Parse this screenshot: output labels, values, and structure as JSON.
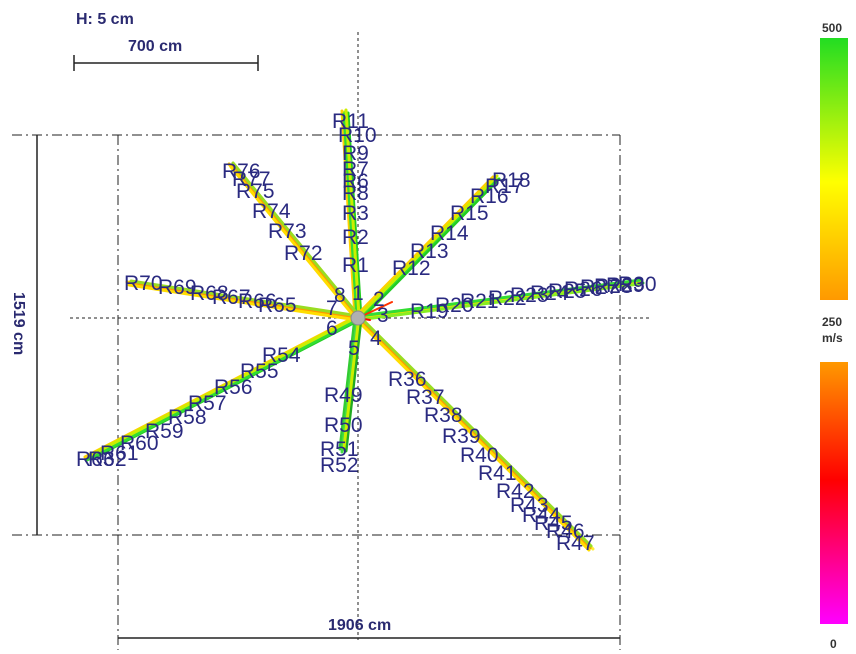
{
  "diagram": {
    "height_label": "H: 5 cm",
    "scale_label": "700 cm",
    "width_label": "1906 cm",
    "depth_label": "1519 cm"
  },
  "legend": {
    "max_label": "500",
    "mid_label": "250",
    "unit_label": "m/s",
    "min_label": "0",
    "colors": {
      "top": "#22dd22",
      "upper_mid": "#ffff00",
      "upper_low": "#ff9900",
      "lower_top": "#ff9900",
      "lower_mid": "#ff0000",
      "bottom": "#ff00ff"
    }
  },
  "sensors": {
    "center": [
      "1",
      "2",
      "3",
      "4",
      "5",
      "6",
      "7",
      "8"
    ],
    "north": [
      "R1",
      "R2",
      "R3",
      "R8",
      "R6",
      "R7",
      "R9",
      "R10",
      "R11"
    ],
    "northeast": [
      "R12",
      "R13",
      "R14",
      "R15",
      "R16",
      "R17",
      "R18"
    ],
    "east": [
      "R19",
      "R20",
      "R21",
      "R22",
      "R23",
      "R24",
      "R25",
      "R26",
      "R27",
      "R28",
      "R29",
      "R30"
    ],
    "southeast": [
      "R36",
      "R37",
      "R38",
      "R39",
      "R40",
      "R41",
      "R42",
      "R43",
      "R44",
      "R45",
      "R46",
      "R47"
    ],
    "south": [
      "R49",
      "R50",
      "R51",
      "R52"
    ],
    "southwest": [
      "R54",
      "R55",
      "R56",
      "R57",
      "R58",
      "R59",
      "R60",
      "R61",
      "R62",
      "R63"
    ],
    "west": [
      "R65",
      "R66",
      "R67",
      "R68",
      "R69",
      "R70"
    ],
    "northwest": [
      "R72",
      "R73",
      "R74",
      "R75",
      "R76",
      "R77"
    ]
  }
}
